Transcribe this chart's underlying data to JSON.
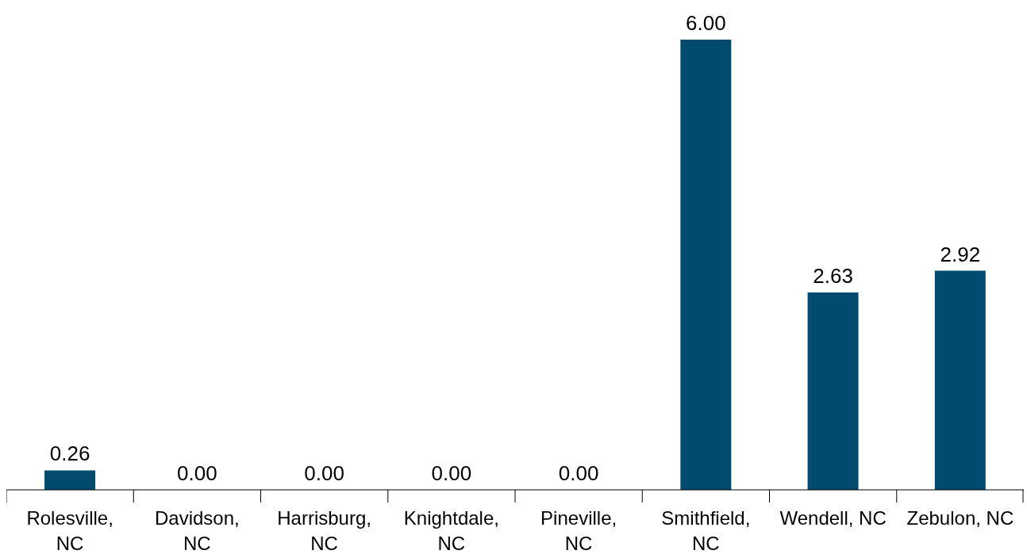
{
  "chart_data": {
    "type": "bar",
    "categories": [
      "Rolesville, NC",
      "Davidson, NC",
      "Harrisburg, NC",
      "Knightdale, NC",
      "Pineville, NC",
      "Smithfield, NC",
      "Wendell, NC",
      "Zebulon, NC"
    ],
    "values": [
      0.26,
      0,
      0,
      0,
      0,
      6,
      2.63,
      2.92
    ],
    "color": "#004b6e",
    "value_labels": [
      "0.26",
      "0.00",
      "0.00",
      "0.00",
      "0.00",
      "6.00",
      "2.63",
      "2.92"
    ]
  }
}
